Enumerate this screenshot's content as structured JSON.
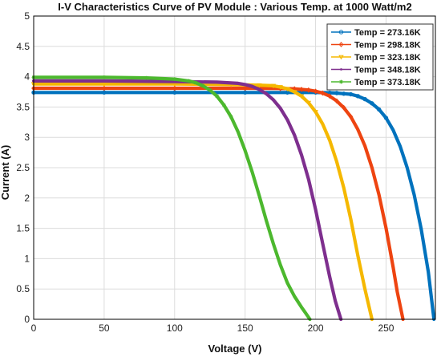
{
  "chart_data": {
    "type": "line",
    "title": "I-V Characteristics Curve of PV Module : Various Temp. at 1000 Watt/m2",
    "xlabel": "Voltage (V)",
    "ylabel": "Current (A)",
    "xlim": [
      0,
      285
    ],
    "ylim": [
      0,
      5
    ],
    "xticks": [
      0,
      50,
      100,
      150,
      200,
      250
    ],
    "yticks": [
      0,
      0.5,
      1,
      1.5,
      2,
      2.5,
      3,
      3.5,
      4,
      4.5,
      5
    ],
    "grid": true,
    "legend_position": "top-right",
    "series": [
      {
        "name": "Temp = 273.16K",
        "color": "#0072BD",
        "marker": "circle",
        "points": [
          [
            0,
            3.74
          ],
          [
            50,
            3.74
          ],
          [
            100,
            3.74
          ],
          [
            150,
            3.74
          ],
          [
            180,
            3.74
          ],
          [
            200,
            3.74
          ],
          [
            210,
            3.735
          ],
          [
            215,
            3.73
          ],
          [
            220,
            3.72
          ],
          [
            225,
            3.71
          ],
          [
            230,
            3.68
          ],
          [
            235,
            3.63
          ],
          [
            240,
            3.56
          ],
          [
            245,
            3.46
          ],
          [
            250,
            3.32
          ],
          [
            255,
            3.12
          ],
          [
            260,
            2.85
          ],
          [
            265,
            2.5
          ],
          [
            270,
            2.05
          ],
          [
            275,
            1.48
          ],
          [
            280,
            0.78
          ],
          [
            284,
            0.0
          ]
        ]
      },
      {
        "name": "Temp = 298.18K",
        "color": "#EE4411",
        "marker": "diamond",
        "points": [
          [
            0,
            3.81
          ],
          [
            50,
            3.81
          ],
          [
            100,
            3.81
          ],
          [
            150,
            3.81
          ],
          [
            175,
            3.805
          ],
          [
            185,
            3.8
          ],
          [
            190,
            3.79
          ],
          [
            195,
            3.78
          ],
          [
            200,
            3.76
          ],
          [
            205,
            3.73
          ],
          [
            210,
            3.68
          ],
          [
            215,
            3.6
          ],
          [
            220,
            3.49
          ],
          [
            225,
            3.34
          ],
          [
            230,
            3.13
          ],
          [
            235,
            2.86
          ],
          [
            240,
            2.5
          ],
          [
            245,
            2.05
          ],
          [
            250,
            1.5
          ],
          [
            255,
            0.86
          ],
          [
            258,
            0.45
          ],
          [
            262,
            0.0
          ]
        ]
      },
      {
        "name": "Temp = 323.18K",
        "color": "#F5B800",
        "marker": "triangle-down",
        "points": [
          [
            0,
            3.88
          ],
          [
            50,
            3.88
          ],
          [
            100,
            3.88
          ],
          [
            140,
            3.87
          ],
          [
            160,
            3.86
          ],
          [
            170,
            3.85
          ],
          [
            175,
            3.83
          ],
          [
            180,
            3.8
          ],
          [
            185,
            3.75
          ],
          [
            190,
            3.68
          ],
          [
            195,
            3.57
          ],
          [
            200,
            3.42
          ],
          [
            205,
            3.22
          ],
          [
            210,
            2.95
          ],
          [
            215,
            2.6
          ],
          [
            220,
            2.17
          ],
          [
            225,
            1.65
          ],
          [
            230,
            1.05
          ],
          [
            235,
            0.5
          ],
          [
            240,
            0.0
          ]
        ]
      },
      {
        "name": "Temp = 348.18K",
        "color": "#7E2F8E",
        "marker": "point",
        "points": [
          [
            0,
            3.93
          ],
          [
            50,
            3.93
          ],
          [
            100,
            3.92
          ],
          [
            130,
            3.91
          ],
          [
            145,
            3.89
          ],
          [
            150,
            3.87
          ],
          [
            155,
            3.84
          ],
          [
            160,
            3.79
          ],
          [
            165,
            3.72
          ],
          [
            170,
            3.62
          ],
          [
            175,
            3.48
          ],
          [
            180,
            3.29
          ],
          [
            185,
            3.04
          ],
          [
            190,
            2.71
          ],
          [
            195,
            2.31
          ],
          [
            200,
            1.81
          ],
          [
            205,
            1.25
          ],
          [
            210,
            0.7
          ],
          [
            214,
            0.3
          ],
          [
            218,
            0.0
          ]
        ]
      },
      {
        "name": "Temp = 373.18K",
        "color": "#4CB82E",
        "marker": "star",
        "points": [
          [
            0,
            3.99
          ],
          [
            50,
            3.99
          ],
          [
            80,
            3.98
          ],
          [
            100,
            3.96
          ],
          [
            110,
            3.93
          ],
          [
            115,
            3.9
          ],
          [
            120,
            3.85
          ],
          [
            125,
            3.78
          ],
          [
            130,
            3.68
          ],
          [
            135,
            3.53
          ],
          [
            140,
            3.34
          ],
          [
            145,
            3.09
          ],
          [
            150,
            2.78
          ],
          [
            155,
            2.43
          ],
          [
            160,
            2.04
          ],
          [
            165,
            1.63
          ],
          [
            170,
            1.25
          ],
          [
            175,
            0.9
          ],
          [
            180,
            0.6
          ],
          [
            185,
            0.38
          ],
          [
            190,
            0.2
          ],
          [
            193,
            0.1
          ],
          [
            196,
            0.0
          ]
        ]
      }
    ]
  }
}
